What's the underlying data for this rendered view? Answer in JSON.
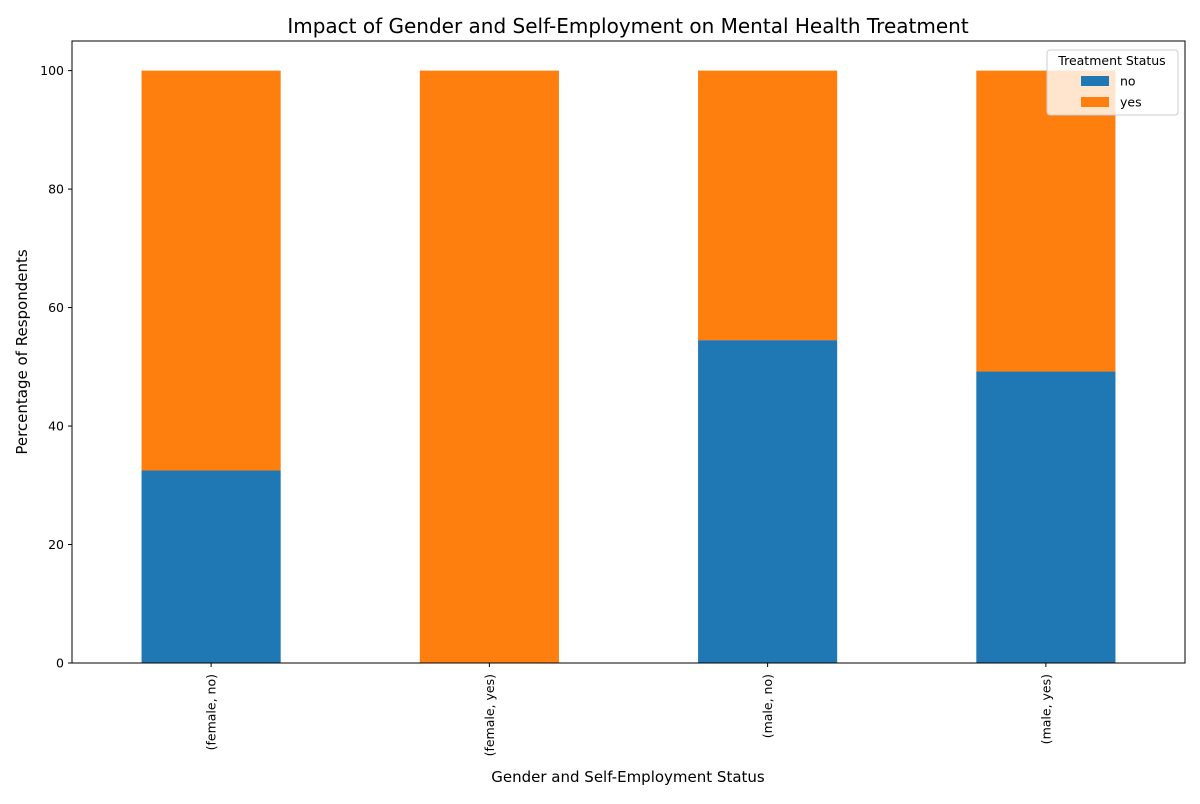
{
  "chart_data": {
    "type": "bar",
    "stacked": true,
    "title": "Impact of Gender and Self-Employment on Mental Health Treatment",
    "xlabel": "Gender and Self-Employment Status",
    "ylabel": "Percentage of Respondents",
    "categories": [
      "(female, no)",
      "(female, yes)",
      "(male, no)",
      "(male, yes)"
    ],
    "series": [
      {
        "name": "no",
        "color": "#1f77b4",
        "values": [
          32.5,
          0,
          54.5,
          49.2
        ]
      },
      {
        "name": "yes",
        "color": "#ff7f0e",
        "values": [
          67.5,
          100,
          45.5,
          50.8
        ]
      }
    ],
    "ylim": [
      0,
      105
    ],
    "yticks": [
      0,
      20,
      40,
      60,
      80,
      100
    ],
    "legend": {
      "title": "Treatment Status",
      "position": "top-right"
    },
    "grid": false
  }
}
